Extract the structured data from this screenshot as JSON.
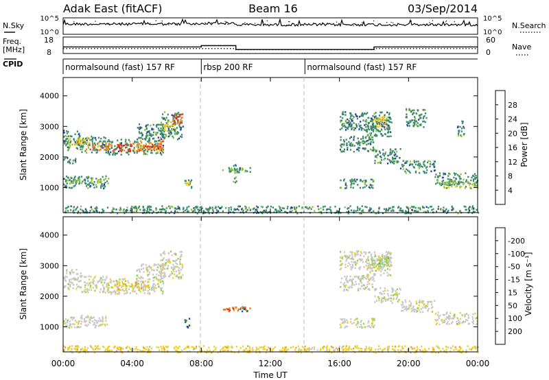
{
  "header": {
    "title": "Adak East (fitACF)",
    "beam": "Beam 16",
    "date": "03/Sep/2014"
  },
  "noise_panel": {
    "left_label": "N.Sky",
    "right_label": "N.Search",
    "left_ticks": [
      "10^5",
      "10^0"
    ],
    "right_ticks": [
      "10^5",
      "10^0"
    ]
  },
  "freq_panel": {
    "left_label_1": "Freq.",
    "left_label_2": "[MHz]",
    "right_label": "Nave",
    "left_ticks": [
      "18",
      "8"
    ],
    "right_ticks": [
      "60",
      "0"
    ],
    "freq_steps": [
      {
        "start": 0,
        "end": 8,
        "value": 12.0
      },
      {
        "start": 8,
        "end": 10,
        "value": 12.8
      },
      {
        "start": 10,
        "end": 18,
        "value": 10.4
      },
      {
        "start": 18,
        "end": 24,
        "value": 12.0
      }
    ],
    "nave_steps": [
      {
        "start": 0,
        "end": 10,
        "value": 18
      },
      {
        "start": 10,
        "end": 18,
        "value": 14
      },
      {
        "start": 18,
        "end": 24,
        "value": 18
      }
    ]
  },
  "cpid_panel": {
    "label": "CPID",
    "segments": [
      {
        "start": 0,
        "end": 8,
        "label": "normalsound (fast) 157 RF"
      },
      {
        "start": 8,
        "end": 14,
        "label": "rbsp 200 RF"
      },
      {
        "start": 14,
        "end": 24,
        "label": "normalsound (fast) 157 RF"
      }
    ]
  },
  "chart_data": [
    {
      "type": "heatmap",
      "title": "",
      "xlabel": "Time UT",
      "ylabel": "Slant Range [km]",
      "xlim": [
        0,
        24
      ],
      "ylim": [
        180,
        4600
      ],
      "x_ticks": [
        0,
        4,
        8,
        12,
        16,
        20,
        24
      ],
      "x_tick_labels": [
        "00:00",
        "04:00",
        "08:00",
        "12:00",
        "16:00",
        "20:00",
        "00:00"
      ],
      "y_ticks": [
        1000,
        2000,
        3000,
        4000
      ],
      "y_tick_labels": [
        "1000",
        "2000",
        "3000",
        "4000"
      ],
      "colorbar_label": "Power [dB]",
      "colorbar_ticks": [
        "4",
        "8",
        "12",
        "16",
        "20",
        "24",
        "28"
      ],
      "colorbar_colors": [
        "#2040ff",
        "#2a3c9c",
        "#3c8c6c",
        "#90c23a",
        "#f0d020",
        "#f09020",
        "#e04818",
        "#e81010"
      ],
      "regions": [
        {
          "t0": 0.0,
          "t1": 1.0,
          "r0": 2250,
          "r1": 2900,
          "level": 1
        },
        {
          "t0": 1.0,
          "t1": 2.5,
          "r0": 2150,
          "r1": 2700,
          "level": 1
        },
        {
          "t0": 2.5,
          "t1": 4.2,
          "r0": 2100,
          "r1": 2600,
          "level": 1
        },
        {
          "t0": 4.2,
          "t1": 5.8,
          "r0": 2100,
          "r1": 3100,
          "level": 1
        },
        {
          "t0": 5.6,
          "t1": 6.9,
          "r0": 2600,
          "r1": 3500,
          "level": 1
        },
        {
          "t0": 0.2,
          "t1": 1.4,
          "r0": 2400,
          "r1": 2650,
          "level": 3
        },
        {
          "t0": 1.3,
          "t1": 2.8,
          "r0": 2250,
          "r1": 2500,
          "level": 4
        },
        {
          "t0": 2.8,
          "t1": 4.0,
          "r0": 2200,
          "r1": 2450,
          "level": 5
        },
        {
          "t0": 4.0,
          "t1": 5.8,
          "r0": 2200,
          "r1": 2550,
          "level": 4
        },
        {
          "t0": 4.6,
          "t1": 5.6,
          "r0": 2300,
          "r1": 2450,
          "level": 5
        },
        {
          "t0": 5.8,
          "t1": 6.6,
          "r0": 2900,
          "r1": 3200,
          "level": 3
        },
        {
          "t0": 6.3,
          "t1": 6.9,
          "r0": 3100,
          "r1": 3450,
          "level": 5
        },
        {
          "t0": 0.0,
          "t1": 0.7,
          "r0": 1800,
          "r1": 2050,
          "level": 1
        },
        {
          "t0": 0.0,
          "t1": 2.6,
          "r0": 1000,
          "r1": 1400,
          "level": 1
        },
        {
          "t0": 0.4,
          "t1": 2.2,
          "r0": 1150,
          "r1": 1300,
          "level": 2
        },
        {
          "t0": 7.0,
          "t1": 7.4,
          "r0": 1000,
          "r1": 1300,
          "level": 1
        },
        {
          "t0": 7.1,
          "t1": 7.3,
          "r0": 1100,
          "r1": 1200,
          "level": 3
        },
        {
          "t0": 9.2,
          "t1": 10.8,
          "r0": 1520,
          "r1": 1680,
          "level": 1
        },
        {
          "t0": 9.6,
          "t1": 10.4,
          "r0": 1560,
          "r1": 1640,
          "level": 2
        },
        {
          "t0": 9.8,
          "t1": 10.0,
          "r0": 1100,
          "r1": 1800,
          "level": 1
        },
        {
          "t0": 16.0,
          "t1": 19.0,
          "r0": 2900,
          "r1": 3500,
          "level": 1
        },
        {
          "t0": 17.5,
          "t1": 19.0,
          "r0": 2700,
          "r1": 3300,
          "level": 1
        },
        {
          "t0": 18.0,
          "t1": 18.8,
          "r0": 3000,
          "r1": 3350,
          "level": 3
        },
        {
          "t0": 19.8,
          "t1": 21.0,
          "r0": 3000,
          "r1": 3600,
          "level": 1
        },
        {
          "t0": 22.8,
          "t1": 23.2,
          "r0": 2700,
          "r1": 3200,
          "level": 1
        },
        {
          "t0": 16.0,
          "t1": 18.0,
          "r0": 2200,
          "r1": 2700,
          "level": 1
        },
        {
          "t0": 18.0,
          "t1": 19.5,
          "r0": 1800,
          "r1": 2300,
          "level": 1
        },
        {
          "t0": 19.5,
          "t1": 21.5,
          "r0": 1500,
          "r1": 1900,
          "level": 1
        },
        {
          "t0": 21.5,
          "t1": 24.0,
          "r0": 1100,
          "r1": 1500,
          "level": 1
        },
        {
          "t0": 22.0,
          "t1": 24.0,
          "r0": 1000,
          "r1": 1250,
          "level": 2
        },
        {
          "t0": 16.0,
          "t1": 18.0,
          "r0": 1000,
          "r1": 1300,
          "level": 1
        },
        {
          "t0": 0.0,
          "t1": 24.0,
          "r0": 180,
          "r1": 420,
          "level": 1
        }
      ]
    },
    {
      "type": "heatmap",
      "title": "",
      "xlabel": "Time UT",
      "ylabel": "Slant Range [km]",
      "xlim": [
        0,
        24
      ],
      "ylim": [
        180,
        4600
      ],
      "x_ticks": [
        0,
        4,
        8,
        12,
        16,
        20,
        24
      ],
      "x_tick_labels": [
        "00:00",
        "04:00",
        "08:00",
        "12:00",
        "16:00",
        "20:00",
        "00:00"
      ],
      "y_ticks": [
        1000,
        2000,
        3000,
        4000
      ],
      "y_tick_labels": [
        "1000",
        "2000",
        "3000",
        "4000"
      ],
      "colorbar_label": "Velocity [m s⁻¹]",
      "colorbar_ticks": [
        "200",
        "100",
        "50",
        "15",
        "-15",
        "-50",
        "-100",
        "-200"
      ],
      "colorbar_colors": [
        "#2040c0",
        "#2e7a5c",
        "#4aa04a",
        "#96d23c",
        "#c8c8c8",
        "#f0d020",
        "#f0a020",
        "#f07020",
        "#e03010"
      ],
      "regions": [
        {
          "t0": 0.0,
          "t1": 1.0,
          "r0": 2250,
          "r1": 2900,
          "level": 4
        },
        {
          "t0": 1.0,
          "t1": 2.5,
          "r0": 2150,
          "r1": 2700,
          "level": 4
        },
        {
          "t0": 2.5,
          "t1": 4.2,
          "r0": 2100,
          "r1": 2600,
          "level": 4
        },
        {
          "t0": 4.2,
          "t1": 5.8,
          "r0": 2100,
          "r1": 3100,
          "level": 4
        },
        {
          "t0": 5.6,
          "t1": 6.9,
          "r0": 2600,
          "r1": 3500,
          "level": 4
        },
        {
          "t0": 3.0,
          "t1": 5.0,
          "r0": 2200,
          "r1": 2500,
          "level": 5
        },
        {
          "t0": 0.0,
          "t1": 2.6,
          "r0": 1000,
          "r1": 1400,
          "level": 4
        },
        {
          "t0": 7.0,
          "t1": 7.4,
          "r0": 1000,
          "r1": 1300,
          "level": 1
        },
        {
          "t0": 9.2,
          "t1": 10.8,
          "r0": 1520,
          "r1": 1680,
          "level": 7
        },
        {
          "t0": 10.2,
          "t1": 10.8,
          "r0": 1530,
          "r1": 1650,
          "level": 1
        },
        {
          "t0": 16.0,
          "t1": 19.0,
          "r0": 2900,
          "r1": 3500,
          "level": 4
        },
        {
          "t0": 17.5,
          "t1": 19.0,
          "r0": 2700,
          "r1": 3300,
          "level": 4
        },
        {
          "t0": 18.0,
          "t1": 18.8,
          "r0": 3000,
          "r1": 3350,
          "level": 3
        },
        {
          "t0": 16.0,
          "t1": 18.0,
          "r0": 2200,
          "r1": 2700,
          "level": 4
        },
        {
          "t0": 18.0,
          "t1": 19.5,
          "r0": 1800,
          "r1": 2300,
          "level": 4
        },
        {
          "t0": 19.5,
          "t1": 21.5,
          "r0": 1500,
          "r1": 1900,
          "level": 4
        },
        {
          "t0": 21.5,
          "t1": 24.0,
          "r0": 1100,
          "r1": 1500,
          "level": 4
        },
        {
          "t0": 16.0,
          "t1": 18.0,
          "r0": 1000,
          "r1": 1300,
          "level": 4
        },
        {
          "t0": 0.0,
          "t1": 24.0,
          "r0": 180,
          "r1": 400,
          "level": 5
        }
      ]
    }
  ]
}
